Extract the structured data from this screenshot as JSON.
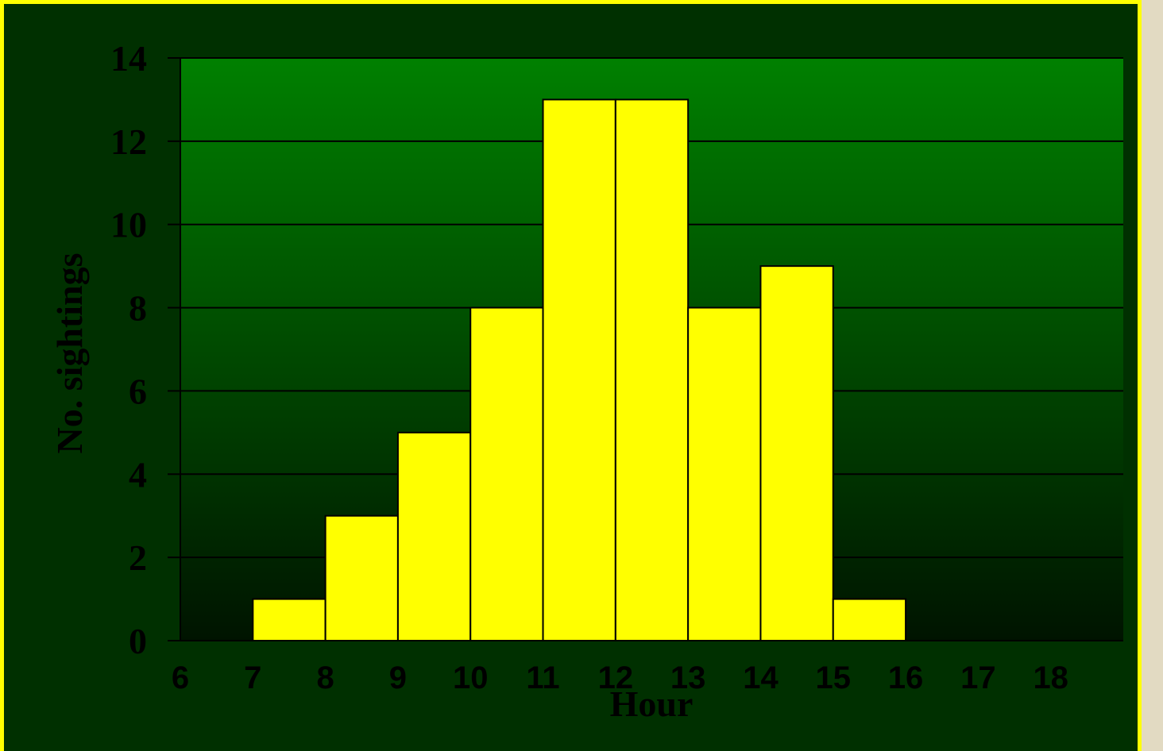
{
  "chart_data": {
    "type": "bar",
    "title": "",
    "xlabel": "Hour",
    "ylabel": "No. sightings",
    "ylim": [
      0,
      14
    ],
    "yticks": [
      "0",
      "2",
      "4",
      "6",
      "8",
      "10",
      "12",
      "14"
    ],
    "xticks": [
      "6",
      "7",
      "8",
      "9",
      "10",
      "11",
      "12",
      "13",
      "14",
      "15",
      "16",
      "17",
      "18"
    ],
    "bars": [
      {
        "x": 7,
        "value": 1
      },
      {
        "x": 8,
        "value": 3
      },
      {
        "x": 9,
        "value": 5
      },
      {
        "x": 10,
        "value": 8
      },
      {
        "x": 11,
        "value": 13
      },
      {
        "x": 12,
        "value": 13
      },
      {
        "x": 13,
        "value": 8
      },
      {
        "x": 14,
        "value": 9
      },
      {
        "x": 15,
        "value": 1
      }
    ],
    "grid": true,
    "legend": "none"
  },
  "colors": {
    "bar_fill": "#ffff00",
    "plot_top": "#008000",
    "plot_bottom": "#001400",
    "background": "#003000",
    "frame_border": "#ffff00"
  }
}
